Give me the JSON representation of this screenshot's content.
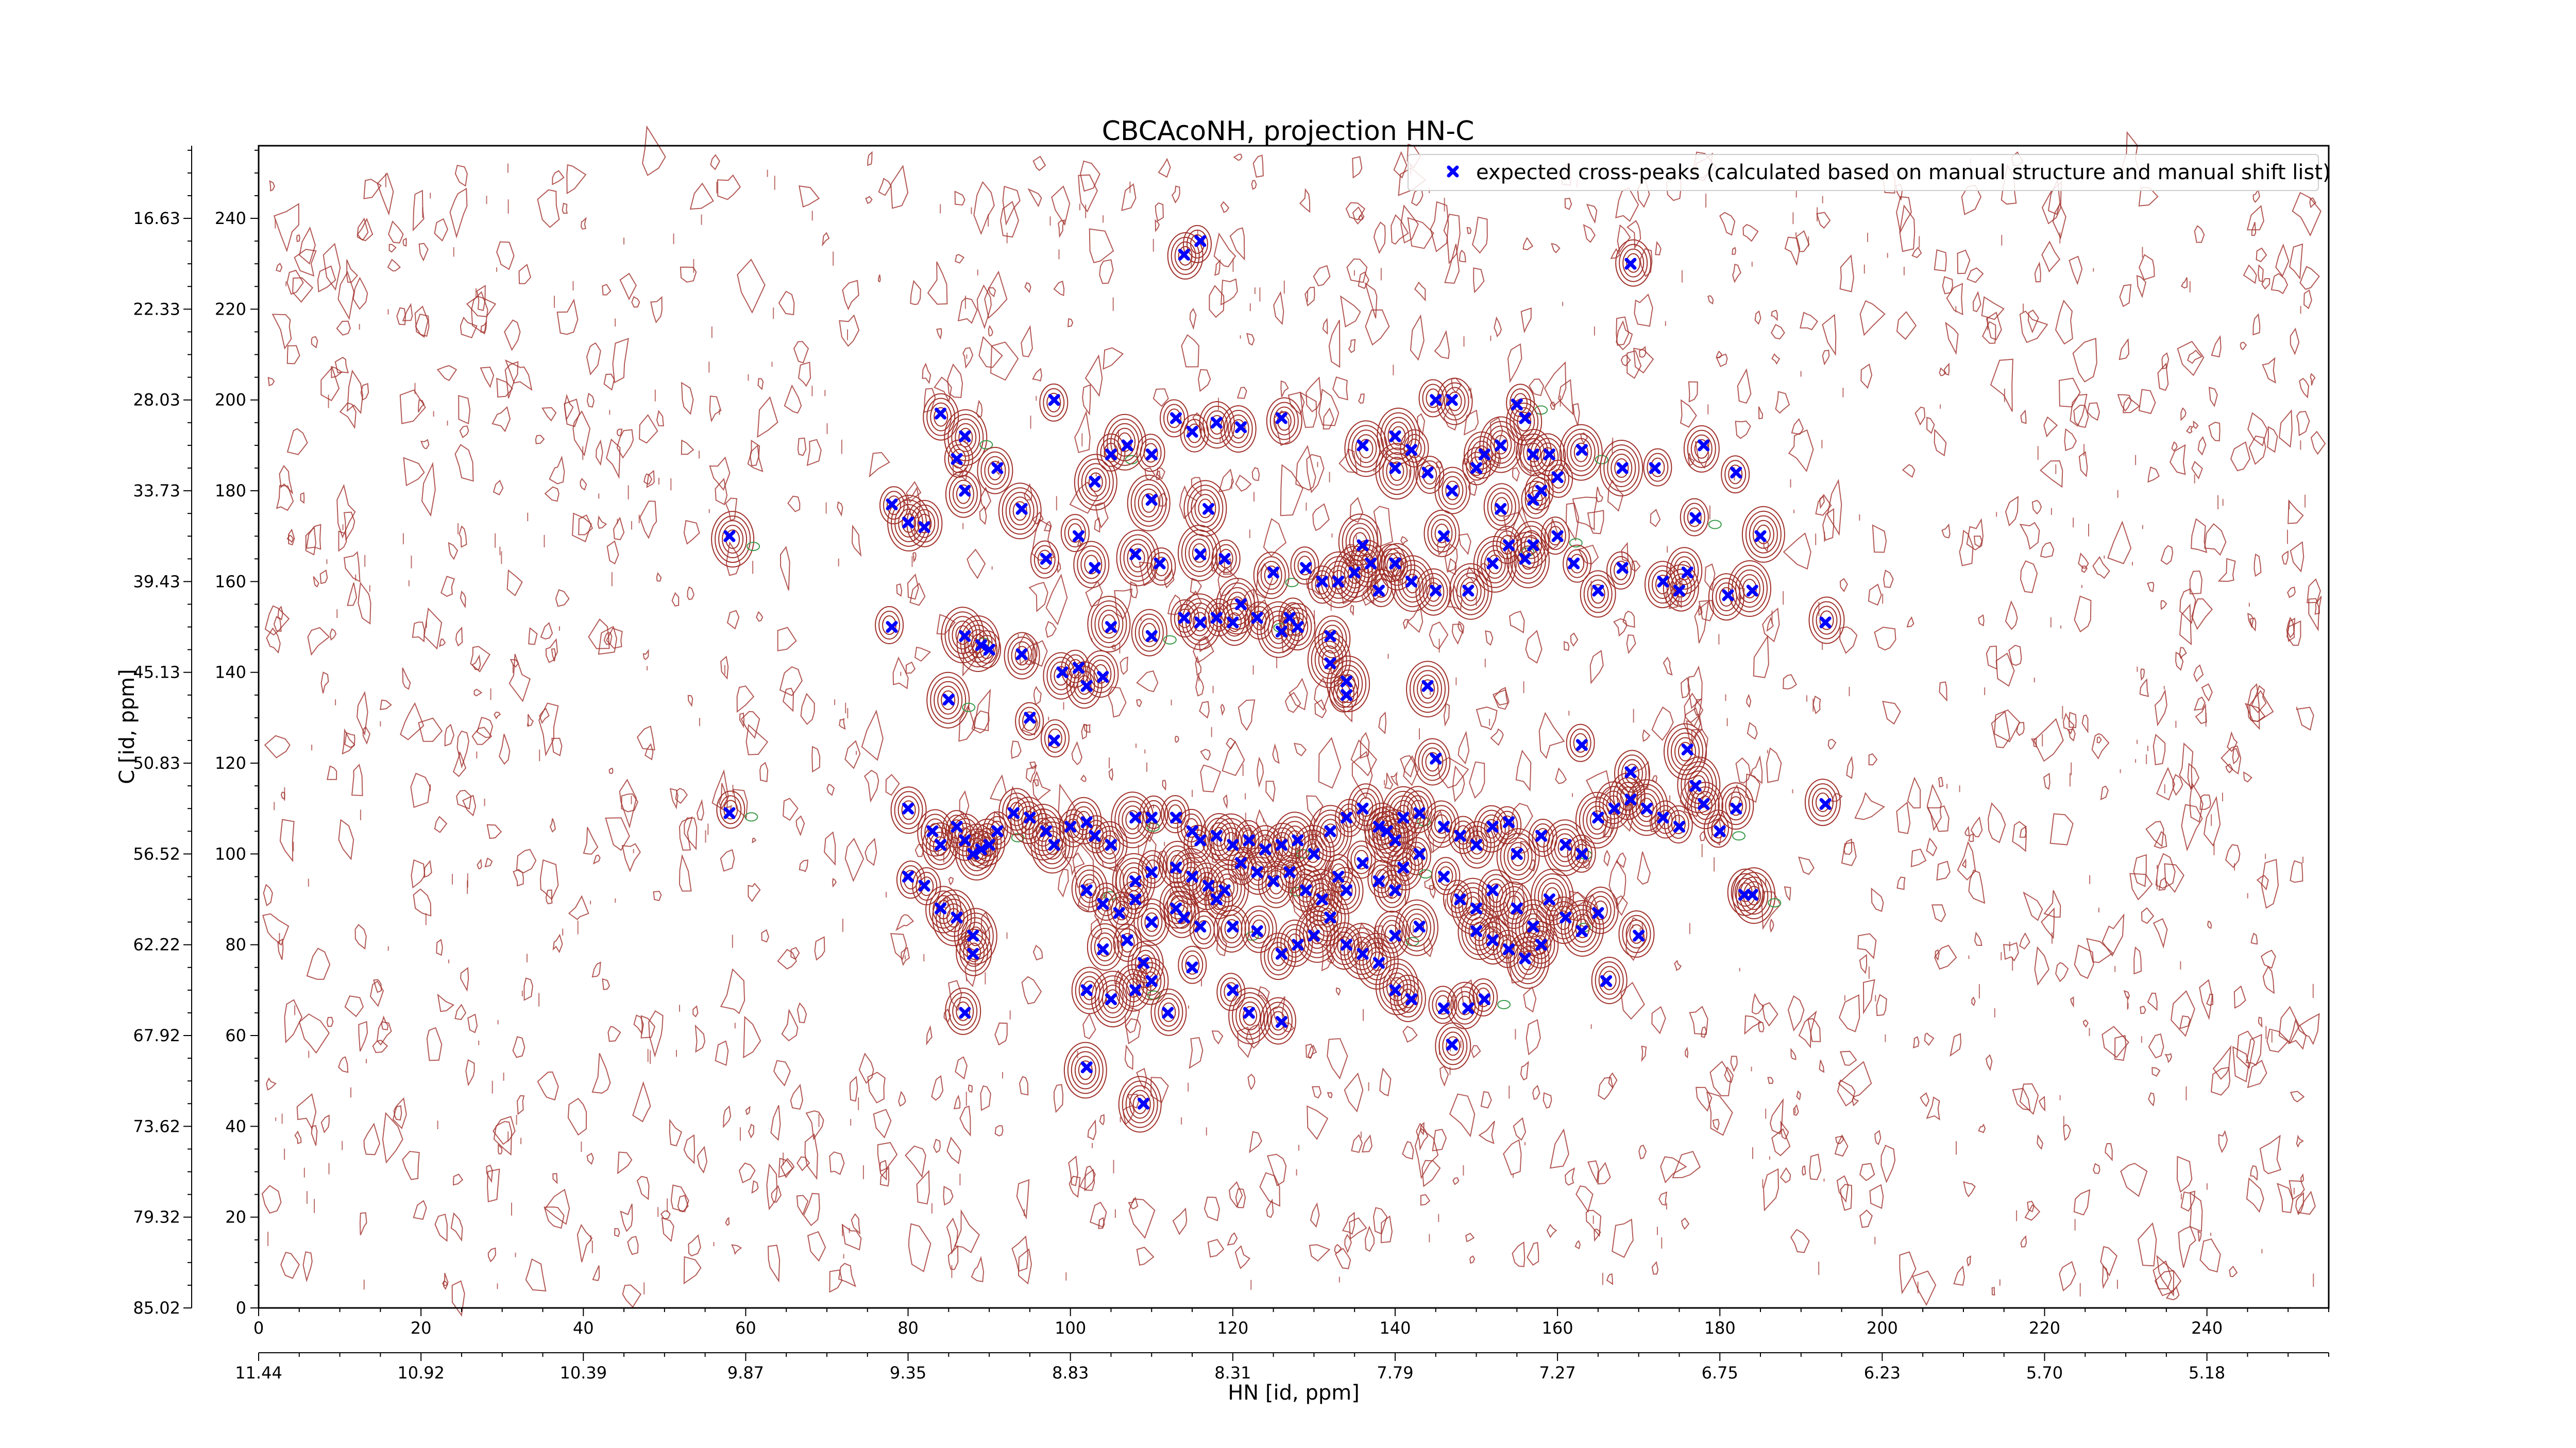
{
  "chart_data": {
    "type": "scatter",
    "title": "CBCAcoNH, projection HN-C",
    "xlabel": "HN [id, ppm]",
    "ylabel": "C [id, ppm]",
    "xlim": [
      0,
      255
    ],
    "ylim": [
      0,
      256
    ],
    "x_index_ticks": [
      0,
      20,
      40,
      60,
      80,
      100,
      120,
      140,
      160,
      180,
      200,
      220,
      240
    ],
    "y_index_ticks": [
      0,
      20,
      40,
      60,
      80,
      100,
      120,
      140,
      160,
      180,
      200,
      220,
      240
    ],
    "x_ppm_labels": [
      "11.44",
      "10.92",
      "10.39",
      "9.87",
      "9.35",
      "8.83",
      "8.31",
      "7.79",
      "7.27",
      "6.75",
      "6.23",
      "5.70",
      "5.18"
    ],
    "y_ppm_labels": [
      "85.02",
      "79.32",
      "73.62",
      "67.92",
      "62.22",
      "56.52",
      "50.83",
      "45.13",
      "39.43",
      "33.73",
      "28.03",
      "22.33",
      "16.63"
    ],
    "grid": false,
    "legend_position": "top-right",
    "colors": {
      "peaks": "#0000ff",
      "contour_positive": "#a0302a",
      "contour_negative": "#3a9a4a"
    },
    "series": [
      {
        "name": "expected cross-peaks (calculated based on manual structure and manual shift list)",
        "marker": "x",
        "points": [
          [
            116,
            235
          ],
          [
            114,
            232
          ],
          [
            169,
            230
          ],
          [
            84,
            197
          ],
          [
            87,
            192
          ],
          [
            86,
            187
          ],
          [
            91,
            185
          ],
          [
            98,
            200
          ],
          [
            113,
            196
          ],
          [
            115,
            193
          ],
          [
            118,
            195
          ],
          [
            121,
            194
          ],
          [
            126,
            196
          ],
          [
            105,
            188
          ],
          [
            107,
            190
          ],
          [
            110,
            188
          ],
          [
            136,
            190
          ],
          [
            140,
            192
          ],
          [
            142,
            189
          ],
          [
            151,
            188
          ],
          [
            145,
            200
          ],
          [
            147,
            200
          ],
          [
            155,
            199
          ],
          [
            156,
            196
          ],
          [
            140,
            185
          ],
          [
            144,
            184
          ],
          [
            147,
            180
          ],
          [
            150,
            185
          ],
          [
            153,
            190
          ],
          [
            157,
            188
          ],
          [
            159,
            188
          ],
          [
            163,
            189
          ],
          [
            168,
            185
          ],
          [
            172,
            185
          ],
          [
            178,
            190
          ],
          [
            182,
            184
          ],
          [
            78,
            177
          ],
          [
            80,
            173
          ],
          [
            82,
            172
          ],
          [
            117,
            176
          ],
          [
            58,
            170
          ],
          [
            94,
            176
          ],
          [
            87,
            180
          ],
          [
            103,
            182
          ],
          [
            110,
            178
          ],
          [
            158,
            180
          ],
          [
            160,
            183
          ],
          [
            157,
            178
          ],
          [
            153,
            176
          ],
          [
            177,
            174
          ],
          [
            185,
            170
          ],
          [
            101,
            170
          ],
          [
            97,
            165
          ],
          [
            103,
            163
          ],
          [
            108,
            166
          ],
          [
            111,
            164
          ],
          [
            116,
            166
          ],
          [
            119,
            165
          ],
          [
            125,
            162
          ],
          [
            129,
            163
          ],
          [
            133,
            160
          ],
          [
            136,
            168
          ],
          [
            140,
            164
          ],
          [
            142,
            160
          ],
          [
            145,
            158
          ],
          [
            149,
            158
          ],
          [
            152,
            164
          ],
          [
            154,
            168
          ],
          [
            156,
            165
          ],
          [
            157,
            168
          ],
          [
            176,
            162
          ],
          [
            181,
            157
          ],
          [
            114,
            152
          ],
          [
            116,
            151
          ],
          [
            118,
            152
          ],
          [
            120,
            151
          ],
          [
            123,
            152
          ],
          [
            121,
            155
          ],
          [
            126,
            149
          ],
          [
            131,
            160
          ],
          [
            135,
            162
          ],
          [
            137,
            164
          ],
          [
            138,
            158
          ],
          [
            140,
            164
          ],
          [
            146,
            170
          ],
          [
            160,
            170
          ],
          [
            162,
            164
          ],
          [
            165,
            158
          ],
          [
            168,
            163
          ],
          [
            173,
            160
          ],
          [
            175,
            158
          ],
          [
            184,
            158
          ],
          [
            193,
            151
          ],
          [
            78,
            150
          ],
          [
            87,
            148
          ],
          [
            89,
            146
          ],
          [
            90,
            145
          ],
          [
            94,
            144
          ],
          [
            99,
            140
          ],
          [
            101,
            141
          ],
          [
            102,
            137
          ],
          [
            104,
            139
          ],
          [
            105,
            150
          ],
          [
            110,
            148
          ],
          [
            127,
            152
          ],
          [
            132,
            148
          ],
          [
            128,
            150
          ],
          [
            132,
            142
          ],
          [
            134,
            138
          ],
          [
            134,
            135
          ],
          [
            144,
            137
          ],
          [
            176,
            123
          ],
          [
            85,
            134
          ],
          [
            95,
            130
          ],
          [
            98,
            125
          ],
          [
            163,
            124
          ],
          [
            145,
            121
          ],
          [
            169,
            118
          ],
          [
            177,
            115
          ],
          [
            182,
            110
          ],
          [
            193,
            111
          ],
          [
            58,
            109
          ],
          [
            80,
            110
          ],
          [
            83,
            105
          ],
          [
            84,
            102
          ],
          [
            86,
            106
          ],
          [
            87,
            103
          ],
          [
            88,
            100
          ],
          [
            89,
            101
          ],
          [
            90,
            102
          ],
          [
            91,
            105
          ],
          [
            93,
            109
          ],
          [
            95,
            108
          ],
          [
            97,
            105
          ],
          [
            98,
            102
          ],
          [
            100,
            106
          ],
          [
            102,
            107
          ],
          [
            103,
            104
          ],
          [
            105,
            102
          ],
          [
            108,
            108
          ],
          [
            110,
            108
          ],
          [
            113,
            108
          ],
          [
            115,
            105
          ],
          [
            116,
            103
          ],
          [
            118,
            104
          ],
          [
            120,
            102
          ],
          [
            122,
            103
          ],
          [
            124,
            101
          ],
          [
            126,
            102
          ],
          [
            128,
            103
          ],
          [
            130,
            100
          ],
          [
            132,
            105
          ],
          [
            134,
            108
          ],
          [
            136,
            110
          ],
          [
            138,
            106
          ],
          [
            139,
            105
          ],
          [
            140,
            103
          ],
          [
            141,
            108
          ],
          [
            143,
            109
          ],
          [
            146,
            106
          ],
          [
            148,
            104
          ],
          [
            150,
            102
          ],
          [
            152,
            106
          ],
          [
            154,
            107
          ],
          [
            155,
            100
          ],
          [
            158,
            104
          ],
          [
            161,
            102
          ],
          [
            163,
            100
          ],
          [
            165,
            108
          ],
          [
            167,
            110
          ],
          [
            169,
            112
          ],
          [
            171,
            110
          ],
          [
            173,
            108
          ],
          [
            175,
            106
          ],
          [
            178,
            111
          ],
          [
            180,
            105
          ],
          [
            108,
            94
          ],
          [
            110,
            96
          ],
          [
            113,
            97
          ],
          [
            115,
            95
          ],
          [
            117,
            93
          ],
          [
            119,
            92
          ],
          [
            121,
            98
          ],
          [
            123,
            96
          ],
          [
            125,
            94
          ],
          [
            127,
            96
          ],
          [
            129,
            92
          ],
          [
            131,
            90
          ],
          [
            133,
            95
          ],
          [
            134,
            92
          ],
          [
            136,
            98
          ],
          [
            138,
            94
          ],
          [
            140,
            92
          ],
          [
            141,
            97
          ],
          [
            143,
            100
          ],
          [
            146,
            95
          ],
          [
            148,
            90
          ],
          [
            150,
            88
          ],
          [
            152,
            92
          ],
          [
            155,
            88
          ],
          [
            157,
            84
          ],
          [
            159,
            90
          ],
          [
            161,
            86
          ],
          [
            163,
            83
          ],
          [
            165,
            87
          ],
          [
            170,
            82
          ],
          [
            80,
            95
          ],
          [
            82,
            93
          ],
          [
            84,
            88
          ],
          [
            86,
            86
          ],
          [
            88,
            82
          ],
          [
            102,
            92
          ],
          [
            104,
            89
          ],
          [
            106,
            87
          ],
          [
            108,
            90
          ],
          [
            110,
            85
          ],
          [
            113,
            88
          ],
          [
            114,
            86
          ],
          [
            116,
            84
          ],
          [
            118,
            90
          ],
          [
            120,
            84
          ],
          [
            123,
            83
          ],
          [
            126,
            78
          ],
          [
            128,
            80
          ],
          [
            130,
            82
          ],
          [
            132,
            86
          ],
          [
            134,
            80
          ],
          [
            136,
            78
          ],
          [
            138,
            76
          ],
          [
            140,
            82
          ],
          [
            143,
            84
          ],
          [
            150,
            83
          ],
          [
            152,
            81
          ],
          [
            154,
            79
          ],
          [
            156,
            77
          ],
          [
            158,
            80
          ],
          [
            166,
            72
          ],
          [
            183,
            91
          ],
          [
            184,
            91
          ],
          [
            88,
            78
          ],
          [
            104,
            79
          ],
          [
            107,
            81
          ],
          [
            109,
            76
          ],
          [
            115,
            75
          ],
          [
            120,
            70
          ],
          [
            102,
            70
          ],
          [
            105,
            68
          ],
          [
            108,
            70
          ],
          [
            110,
            72
          ],
          [
            112,
            65
          ],
          [
            122,
            65
          ],
          [
            126,
            63
          ],
          [
            140,
            70
          ],
          [
            142,
            68
          ],
          [
            146,
            66
          ],
          [
            149,
            66
          ],
          [
            151,
            68
          ],
          [
            147,
            58
          ],
          [
            87,
            65
          ],
          [
            102,
            53
          ],
          [
            109,
            45
          ]
        ]
      }
    ]
  }
}
